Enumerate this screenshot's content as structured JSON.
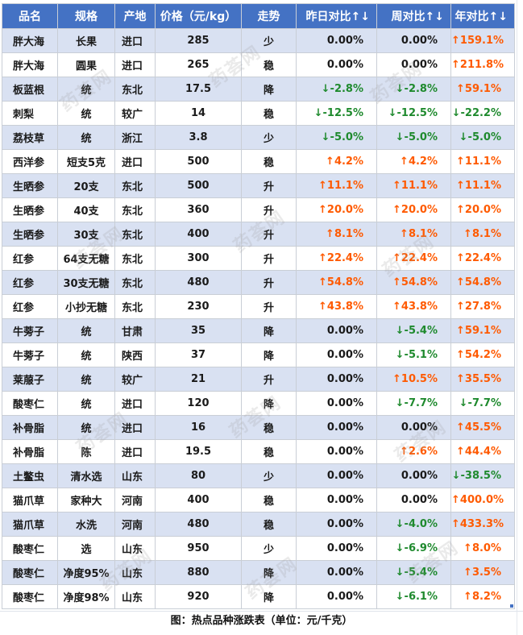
{
  "table": {
    "headers": [
      "品名",
      "规格",
      "产地",
      "价格（元/kg）",
      "走势",
      "昨日对比↑↓",
      "周对比↑↓",
      "年对比↑↓"
    ],
    "rows": [
      {
        "name": "胖大海",
        "spec": "长果",
        "origin": "进口",
        "price": "285",
        "trend": "少",
        "day": "0.00%",
        "week": "0.00%",
        "year": "↑159.1%"
      },
      {
        "name": "胖大海",
        "spec": "圆果",
        "origin": "进口",
        "price": "265",
        "trend": "稳",
        "day": "0.00%",
        "week": "0.00%",
        "year": "↑211.8%"
      },
      {
        "name": "板蓝根",
        "spec": "统",
        "origin": "东北",
        "price": "17.5",
        "trend": "降",
        "day": "↓-2.8%",
        "week": "↓-2.8%",
        "year": "↑59.1%"
      },
      {
        "name": "刺梨",
        "spec": "统",
        "origin": "较广",
        "price": "14",
        "trend": "稳",
        "day": "↓-12.5%",
        "week": "↓-12.5%",
        "year": "↓-22.2%"
      },
      {
        "name": "荔枝草",
        "spec": "统",
        "origin": "浙江",
        "price": "3.8",
        "trend": "少",
        "day": "↓-5.0%",
        "week": "↓-5.0%",
        "year": "↓-5.0%"
      },
      {
        "name": "西洋参",
        "spec": "短支5克",
        "origin": "进口",
        "price": "500",
        "trend": "稳",
        "day": "↑4.2%",
        "week": "↑4.2%",
        "year": "↑11.1%"
      },
      {
        "name": "生晒参",
        "spec": "20支",
        "origin": "东北",
        "price": "500",
        "trend": "升",
        "day": "↑11.1%",
        "week": "↑11.1%",
        "year": "↑11.1%"
      },
      {
        "name": "生晒参",
        "spec": "40支",
        "origin": "东北",
        "price": "360",
        "trend": "升",
        "day": "↑20.0%",
        "week": "↑20.0%",
        "year": "↑20.0%"
      },
      {
        "name": "生晒参",
        "spec": "30支",
        "origin": "东北",
        "price": "400",
        "trend": "升",
        "day": "↑8.1%",
        "week": "↑8.1%",
        "year": "↑8.1%"
      },
      {
        "name": "红参",
        "spec": "64支无糖",
        "origin": "东北",
        "price": "300",
        "trend": "升",
        "day": "↑22.4%",
        "week": "↑22.4%",
        "year": "↑22.4%"
      },
      {
        "name": "红参",
        "spec": "30支无糖",
        "origin": "东北",
        "price": "480",
        "trend": "升",
        "day": "↑54.8%",
        "week": "↑54.8%",
        "year": "↑54.8%"
      },
      {
        "name": "红参",
        "spec": "小抄无糖",
        "origin": "东北",
        "price": "230",
        "trend": "升",
        "day": "↑43.8%",
        "week": "↑43.8%",
        "year": "↑27.8%"
      },
      {
        "name": "牛蒡子",
        "spec": "统",
        "origin": "甘肃",
        "price": "35",
        "trend": "降",
        "day": "0.00%",
        "week": "↓-5.4%",
        "year": "↑59.1%"
      },
      {
        "name": "牛蒡子",
        "spec": "统",
        "origin": "陕西",
        "price": "37",
        "trend": "降",
        "day": "0.00%",
        "week": "↓-5.1%",
        "year": "↑54.2%"
      },
      {
        "name": "莱菔子",
        "spec": "统",
        "origin": "较广",
        "price": "21",
        "trend": "升",
        "day": "0.00%",
        "week": "↑10.5%",
        "year": "↑35.5%"
      },
      {
        "name": "酸枣仁",
        "spec": "统",
        "origin": "进口",
        "price": "120",
        "trend": "降",
        "day": "0.00%",
        "week": "↓-7.7%",
        "year": "↓-7.7%"
      },
      {
        "name": "补骨脂",
        "spec": "统",
        "origin": "进口",
        "price": "16",
        "trend": "稳",
        "day": "0.00%",
        "week": "0.00%",
        "year": "↑45.5%"
      },
      {
        "name": "补骨脂",
        "spec": "陈",
        "origin": "进口",
        "price": "19.5",
        "trend": "稳",
        "day": "0.00%",
        "week": "↑2.6%",
        "year": "↑44.4%"
      },
      {
        "name": "土鳖虫",
        "spec": "清水选",
        "origin": "山东",
        "price": "80",
        "trend": "少",
        "day": "0.00%",
        "week": "0.00%",
        "year": "↓-38.5%"
      },
      {
        "name": "猫爪草",
        "spec": "家种大",
        "origin": "河南",
        "price": "400",
        "trend": "稳",
        "day": "0.00%",
        "week": "0.00%",
        "year": "↑400.0%"
      },
      {
        "name": "猫爪草",
        "spec": "水洗",
        "origin": "河南",
        "price": "480",
        "trend": "稳",
        "day": "0.00%",
        "week": "↓-4.0%",
        "year": "↑433.3%"
      },
      {
        "name": "酸枣仁",
        "spec": "选",
        "origin": "山东",
        "price": "950",
        "trend": "少",
        "day": "0.00%",
        "week": "↓-6.9%",
        "year": "↑8.0%"
      },
      {
        "name": "酸枣仁",
        "spec": "净度95%",
        "origin": "山东",
        "price": "880",
        "trend": "降",
        "day": "0.00%",
        "week": "↓-5.4%",
        "year": "↑3.5%"
      },
      {
        "name": "酸枣仁",
        "spec": "净度98%",
        "origin": "山东",
        "price": "920",
        "trend": "降",
        "day": "0.00%",
        "week": "↓-6.1%",
        "year": "↑8.2%"
      }
    ]
  },
  "caption": "图：热点品种涨跌表（单位：元/千克）",
  "watermark": "药荟网",
  "colors": {
    "header_bg": "#4472c4",
    "band_bg": "#d9e1f2",
    "up": "#ff5a00",
    "down": "#1f8a2e"
  }
}
